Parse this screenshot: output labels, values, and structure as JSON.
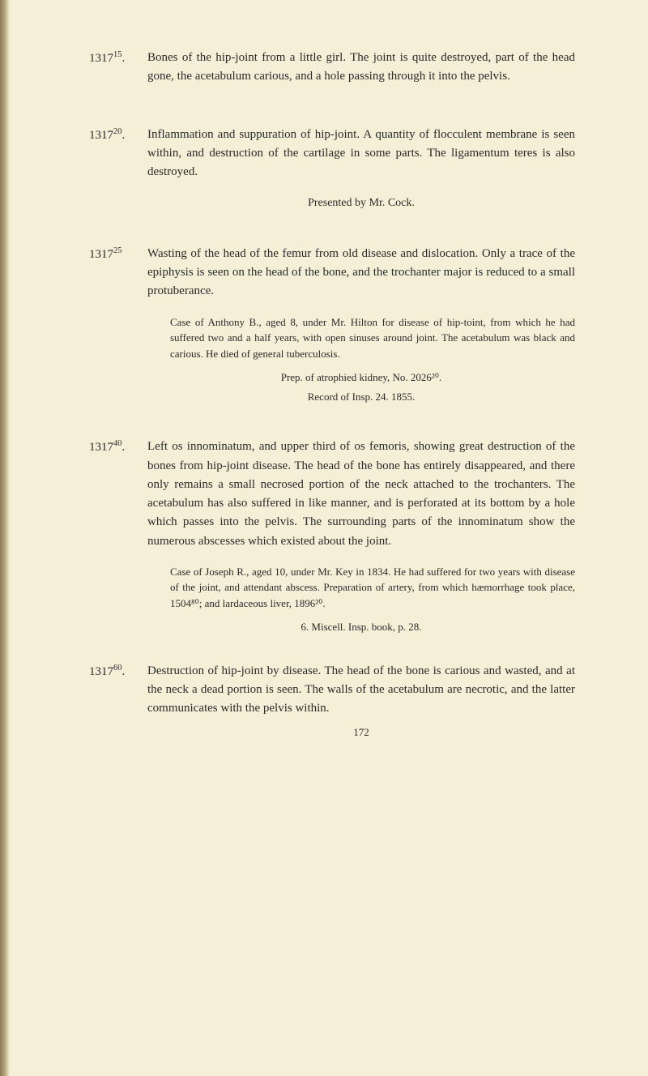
{
  "entries": [
    {
      "number": "1317",
      "super": "15",
      "suffix": ".",
      "main": "Bones of the hip-joint from a little girl. The joint is quite destroyed, part of the head gone, the acetabulum carious, and a hole passing through it into the pelvis."
    },
    {
      "number": "1317",
      "super": "20",
      "suffix": ".",
      "main": "Inflammation and suppuration of hip-joint. A quantity of flocculent membrane is seen within, and destruction of the cartilage in some parts. The ligamentum teres is also destroyed.",
      "presented": "Presented by Mr. Cock."
    },
    {
      "number": "1317",
      "super": "25",
      "suffix": "",
      "main": "Wasting of the head of the femur from old disease and dislocation. Only a trace of the epiphysis is seen on the head of the bone, and the trochanter major is reduced to a small protuberance.",
      "case": "Case of Anthony B., aged 8, under Mr. Hilton for disease of hip-toint, from which he had suffered two and a half years, with open sinuses around joint. The acetabulum was black and carious. He died of general tuberculosis.",
      "prep": "Prep. of atrophied kidney, No. 2026²⁰.",
      "record": "Record of Insp. 24. 1855."
    },
    {
      "number": "1317",
      "super": "40",
      "suffix": ".",
      "main": "Left os innominatum, and upper third of os femoris, showing great destruction of the bones from hip-joint disease. The head of the bone has entirely disappeared, and there only remains a small necrosed portion of the neck attached to the trochanters. The acetabulum has also suffered in like manner, and is perforated at its bottom by a hole which passes into the pelvis. The surrounding parts of the innominatum show the numerous abscesses which existed about the joint.",
      "case": "Case of Joseph R., aged 10, under Mr. Key in 1834. He had suffered for two years with disease of the joint, and attendant abscess. Preparation of artery, from which hæmorrhage took place, 1504⁸⁰; and lardaceous liver, 1896²⁰.",
      "miscell": "6. Miscell. Insp. book, p. 28."
    },
    {
      "number": "1317",
      "super": "60",
      "suffix": ".",
      "main": "Destruction of hip-joint by disease. The head of the bone is carious and wasted, and at the neck a dead portion is seen. The walls of the acetabulum are necrotic, and the latter communicates with the pelvis within."
    }
  ],
  "pageNumber": "172"
}
